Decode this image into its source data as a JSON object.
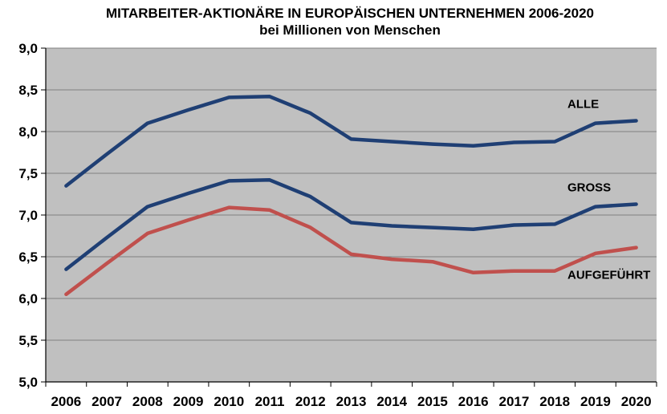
{
  "chart_data": {
    "type": "line",
    "title": "MITARBEITER-AKTIONÄRE IN EUROPÄISCHEN UNTERNEHMEN 2006-2020",
    "subtitle": "bei Millionen von Menschen",
    "x": [
      "2006",
      "2007",
      "2008",
      "2009",
      "2010",
      "2011",
      "2012",
      "2013",
      "2014",
      "2015",
      "2016",
      "2017",
      "2018",
      "2019",
      "2020"
    ],
    "ylim": [
      5.0,
      9.0
    ],
    "yticks": [
      "5,0",
      "5,5",
      "6,0",
      "6,5",
      "7,0",
      "7,5",
      "8,0",
      "8,5",
      "9,0"
    ],
    "grid": true,
    "plot_background": "#c0c0c0",
    "series": [
      {
        "name": "ALLE",
        "color": "#1f3f74",
        "values": [
          7.35,
          7.73,
          8.1,
          8.26,
          8.41,
          8.42,
          8.22,
          7.91,
          7.88,
          7.85,
          7.83,
          7.87,
          7.88,
          8.1,
          8.13
        ]
      },
      {
        "name": "GROSS",
        "color": "#1f3f74",
        "values": [
          6.35,
          6.73,
          7.1,
          7.26,
          7.41,
          7.42,
          7.22,
          6.91,
          6.87,
          6.85,
          6.83,
          6.88,
          6.89,
          7.1,
          7.13
        ]
      },
      {
        "name": "AUFGEFÜHRT",
        "color": "#c0504d",
        "values": [
          6.05,
          6.42,
          6.78,
          6.94,
          7.09,
          7.06,
          6.85,
          6.53,
          6.47,
          6.44,
          6.31,
          6.33,
          6.33,
          6.54,
          6.61
        ]
      }
    ]
  }
}
